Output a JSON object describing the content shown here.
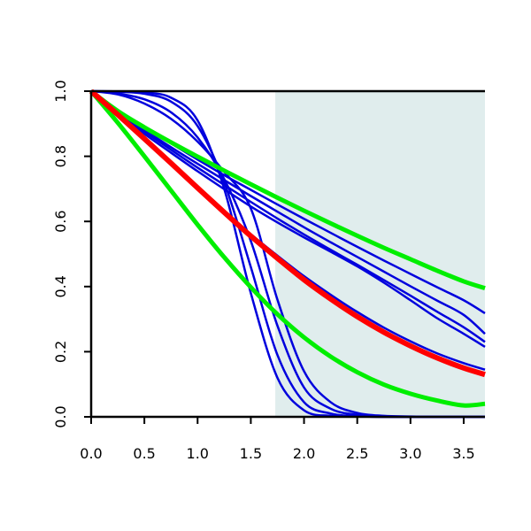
{
  "chart_data": {
    "type": "line",
    "title": "",
    "xlabel": "",
    "ylabel": "",
    "xlim": [
      0.0,
      3.7
    ],
    "ylim": [
      0.0,
      1.0
    ],
    "x_ticks": [
      "0.0",
      "0.5",
      "1.0",
      "1.5",
      "2.0",
      "2.5",
      "3.0",
      "3.5"
    ],
    "y_ticks": [
      "0.0",
      "0.2",
      "0.4",
      "0.6",
      "0.8",
      "1.0"
    ],
    "grid": false,
    "legend": "none",
    "shaded_region": {
      "x_start": 1.73,
      "x_end": 3.7,
      "color": "#e0eded"
    },
    "x": [
      0.0,
      0.25,
      0.5,
      0.75,
      1.0,
      1.25,
      1.5,
      1.75,
      2.0,
      2.25,
      2.5,
      2.75,
      3.0,
      3.25,
      3.5,
      3.7
    ],
    "series": [
      {
        "color": "#ff0000",
        "width": 6,
        "values": [
          1.0,
          0.928,
          0.854,
          0.779,
          0.703,
          0.628,
          0.555,
          0.487,
          0.421,
          0.362,
          0.308,
          0.26,
          0.218,
          0.181,
          0.15,
          0.13
        ]
      },
      {
        "color": "#00ee00",
        "width": 5,
        "values": [
          1.0,
          0.939,
          0.889,
          0.843,
          0.799,
          0.756,
          0.714,
          0.673,
          0.633,
          0.594,
          0.556,
          0.519,
          0.484,
          0.449,
          0.416,
          0.395
        ]
      },
      {
        "color": "#00ee00",
        "width": 5,
        "values": [
          1.0,
          0.903,
          0.8,
          0.695,
          0.59,
          0.49,
          0.398,
          0.315,
          0.244,
          0.185,
          0.137,
          0.099,
          0.071,
          0.05,
          0.035,
          0.04
        ]
      },
      {
        "color": "#0000dd",
        "width": 2.5,
        "values": [
          1.0,
          0.999,
          0.996,
          0.98,
          0.91,
          0.7,
          0.38,
          0.12,
          0.02,
          0.003,
          0.001,
          0.0,
          0.0,
          0.0,
          0.0,
          0.0
        ]
      },
      {
        "color": "#0000dd",
        "width": 2.5,
        "values": [
          1.0,
          0.998,
          0.992,
          0.968,
          0.893,
          0.72,
          0.46,
          0.19,
          0.045,
          0.01,
          0.002,
          0.0,
          0.0,
          0.0,
          0.0,
          0.0
        ]
      },
      {
        "color": "#0000dd",
        "width": 2.5,
        "values": [
          1.0,
          0.993,
          0.975,
          0.935,
          0.858,
          0.73,
          0.54,
          0.28,
          0.09,
          0.025,
          0.006,
          0.001,
          0.0,
          0.0,
          0.0,
          0.0
        ]
      },
      {
        "color": "#0000dd",
        "width": 2.5,
        "values": [
          1.0,
          0.99,
          0.962,
          0.915,
          0.845,
          0.752,
          0.64,
          0.36,
          0.14,
          0.045,
          0.012,
          0.003,
          0.001,
          0.0,
          0.0,
          0.0
        ]
      },
      {
        "color": "#0000dd",
        "width": 2.5,
        "values": [
          1.0,
          0.942,
          0.89,
          0.84,
          0.79,
          0.742,
          0.697,
          0.652,
          0.608,
          0.565,
          0.522,
          0.48,
          0.439,
          0.398,
          0.358,
          0.318
        ]
      },
      {
        "color": "#0000dd",
        "width": 2.5,
        "values": [
          1.0,
          0.937,
          0.881,
          0.828,
          0.777,
          0.727,
          0.678,
          0.63,
          0.582,
          0.536,
          0.491,
          0.446,
          0.401,
          0.357,
          0.313,
          0.255
        ]
      },
      {
        "color": "#0000dd",
        "width": 2.5,
        "values": [
          1.0,
          0.934,
          0.876,
          0.82,
          0.765,
          0.712,
          0.66,
          0.609,
          0.56,
          0.513,
          0.467,
          0.42,
          0.372,
          0.323,
          0.275,
          0.23
        ]
      },
      {
        "color": "#0000dd",
        "width": 2.5,
        "values": [
          1.0,
          0.93,
          0.869,
          0.811,
          0.754,
          0.699,
          0.646,
          0.597,
          0.551,
          0.507,
          0.462,
          0.412,
          0.358,
          0.303,
          0.255,
          0.215
        ]
      },
      {
        "color": "#0000dd",
        "width": 2.5,
        "values": [
          1.0,
          0.925,
          0.853,
          0.779,
          0.705,
          0.632,
          0.561,
          0.495,
          0.432,
          0.375,
          0.322,
          0.274,
          0.232,
          0.195,
          0.165,
          0.145
        ]
      }
    ]
  }
}
